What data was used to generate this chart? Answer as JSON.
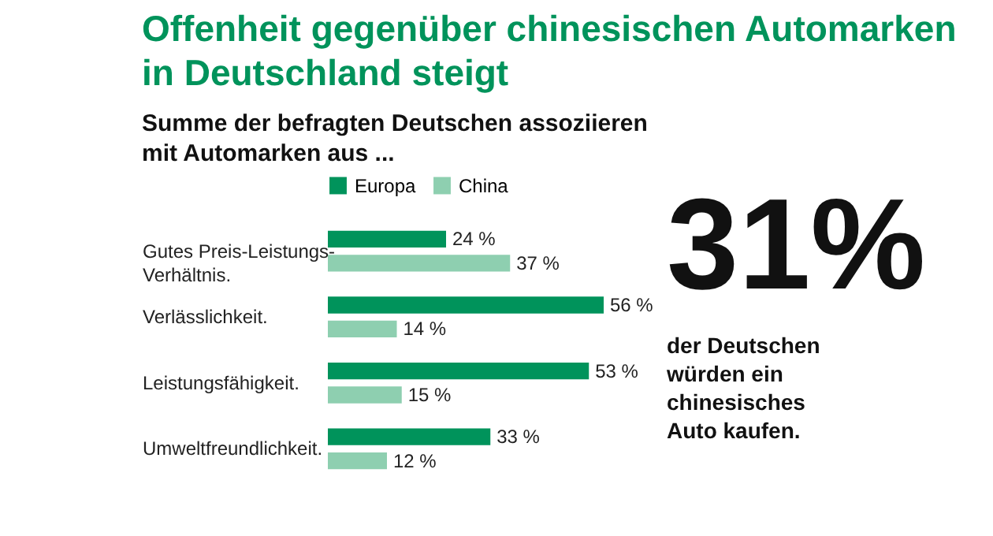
{
  "chart_data": {
    "type": "bar",
    "orientation": "horizontal",
    "title": [
      "Offenheit gegenüber chinesischen Automarken",
      "in Deutschland steigt"
    ],
    "subtitle": [
      "Summe der befragten Deutschen assoziieren",
      "mit Automarken aus ..."
    ],
    "categories": [
      "Gutes Preis-Leistungs-\nVerhältnis.",
      "Verlässlichkeit.",
      "Leistungsfähigkeit.",
      "Umweltfreundlichkeit."
    ],
    "series": [
      {
        "name": "Europa",
        "color": "#00935b",
        "values": [
          24,
          56,
          53,
          33
        ],
        "value_labels": [
          "24 %",
          "56 %",
          "53 %",
          "33 %"
        ]
      },
      {
        "name": "China",
        "color": "#8ecfb0",
        "values": [
          37,
          14,
          15,
          12
        ],
        "value_labels": [
          "37 %",
          "14 %",
          "15 %",
          "12 %"
        ]
      }
    ],
    "legend": "top left",
    "annotations": [
      "31%",
      "der Deutschen\nwürden ein\nchinesisches\nAuto kaufen."
    ]
  }
}
